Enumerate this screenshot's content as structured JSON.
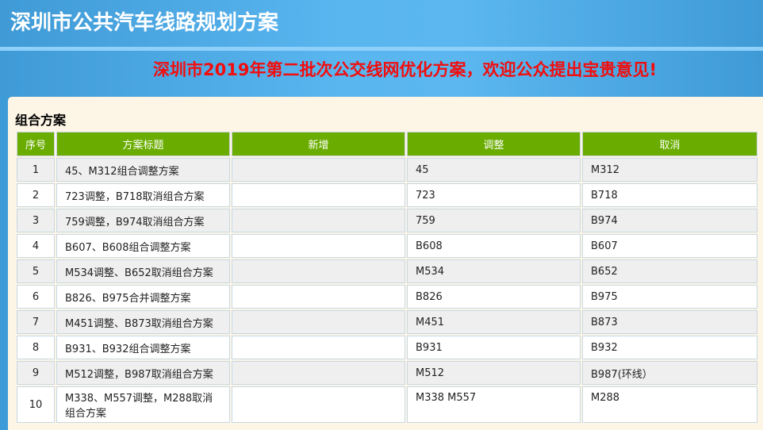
{
  "header": {
    "title": "深圳市公共汽车线路规划方案",
    "notice": "深圳市2019年第二批次公交线网优化方案，欢迎公众提出宝贵意见!"
  },
  "section": {
    "title": "组合方案"
  },
  "table": {
    "columns": [
      "序号",
      "方案标题",
      "新增",
      "调整",
      "取消"
    ],
    "rows": [
      {
        "no": "1",
        "title": "45、M312组合调整方案",
        "add": "",
        "adjust": "45",
        "cancel": "M312"
      },
      {
        "no": "2",
        "title": "723调整，B718取消组合方案",
        "add": "",
        "adjust": "723",
        "cancel": "B718"
      },
      {
        "no": "3",
        "title": "759调整，B974取消组合方案",
        "add": "",
        "adjust": "759",
        "cancel": "B974"
      },
      {
        "no": "4",
        "title": "B607、B608组合调整方案",
        "add": "",
        "adjust": "B608",
        "cancel": "B607"
      },
      {
        "no": "5",
        "title": "M534调整、B652取消组合方案",
        "add": "",
        "adjust": "M534",
        "cancel": "B652"
      },
      {
        "no": "6",
        "title": "B826、B975合并调整方案",
        "add": "",
        "adjust": "B826",
        "cancel": "B975"
      },
      {
        "no": "7",
        "title": "M451调整、B873取消组合方案",
        "add": "",
        "adjust": "M451",
        "cancel": "B873"
      },
      {
        "no": "8",
        "title": "B931、B932组合调整方案",
        "add": "",
        "adjust": "B931",
        "cancel": "B932"
      },
      {
        "no": "9",
        "title": "M512调整，B987取消组合方案",
        "add": "",
        "adjust": "M512",
        "cancel": "B987(环线）"
      },
      {
        "no": "10",
        "title": "M338、M557调整，M288取消组合方案",
        "add": "",
        "adjust": "M338 M557",
        "cancel": "M288"
      }
    ]
  }
}
